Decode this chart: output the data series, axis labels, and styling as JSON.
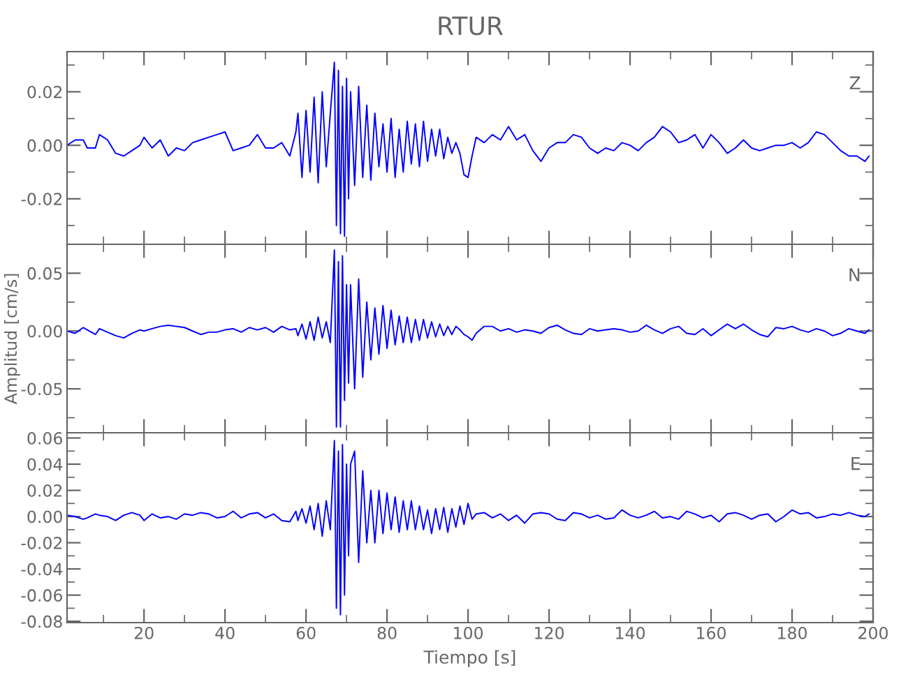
{
  "chart_data": [
    {
      "type": "line",
      "title": "RTUR",
      "annotations": [
        "Z"
      ],
      "tick_labels": "y",
      "grid": false,
      "legend": false,
      "xlim": [
        1,
        200
      ],
      "xticks": [
        {
          "value": 10,
          "label": null
        },
        20,
        {
          "value": 30,
          "label": null
        },
        40,
        {
          "value": 50,
          "label": null
        },
        60,
        {
          "value": 70,
          "label": null
        },
        80,
        {
          "value": 90,
          "label": null
        },
        100,
        {
          "value": 110,
          "label": null
        },
        120,
        {
          "value": 130,
          "label": null
        },
        140,
        {
          "value": 150,
          "label": null
        },
        160,
        {
          "value": 170,
          "label": null
        },
        180,
        {
          "value": 190,
          "label": null
        },
        200
      ],
      "ylim": [
        -0.037,
        0.035
      ],
      "yticks": [
        {
          "value": -0.03,
          "label": null
        },
        {
          "value": -0.02,
          "label": "-0.02"
        },
        {
          "value": -0.01,
          "label": null
        },
        {
          "value": 0,
          "label": "0.00"
        },
        {
          "value": 0.01,
          "label": null
        },
        {
          "value": 0.02,
          "label": "0.02"
        },
        {
          "value": 0.03,
          "label": null
        }
      ],
      "x": [
        1,
        3,
        5,
        6,
        8,
        9,
        11,
        13,
        15,
        17,
        19,
        20,
        22,
        24,
        26,
        28,
        30,
        32,
        34,
        36,
        38,
        40,
        42,
        44,
        46,
        48,
        50,
        52,
        54,
        56,
        57.5,
        58,
        59,
        60,
        61,
        62,
        63,
        64,
        65,
        66,
        67,
        67.5,
        68,
        68.5,
        69,
        69.5,
        70,
        70.5,
        71,
        72,
        73,
        74,
        75,
        76,
        77,
        78,
        79,
        80,
        81,
        82,
        83,
        84,
        85,
        86,
        87,
        88,
        89,
        90,
        91,
        92,
        93,
        94,
        95,
        96,
        97,
        98,
        99,
        100,
        101,
        102,
        104,
        106,
        108,
        110,
        112,
        114,
        116,
        118,
        120,
        122,
        124,
        126,
        128,
        130,
        132,
        134,
        136,
        138,
        140,
        142,
        144,
        146,
        148,
        150,
        152,
        154,
        156,
        158,
        160,
        162,
        164,
        166,
        168,
        170,
        172,
        174,
        176,
        178,
        180,
        182,
        184,
        186,
        188,
        190,
        192,
        194,
        196,
        198,
        199
      ],
      "series": [
        {
          "color": "#0000ff",
          "values": [
            0.0,
            0.002,
            0.002,
            -0.001,
            -0.001,
            0.004,
            0.002,
            -0.003,
            -0.004,
            -0.002,
            0.0,
            0.003,
            -0.001,
            0.002,
            -0.004,
            -0.001,
            -0.002,
            0.001,
            0.002,
            0.003,
            0.004,
            0.005,
            -0.002,
            -0.001,
            0.0,
            0.004,
            -0.001,
            -0.001,
            0.001,
            -0.004,
            0.005,
            0.012,
            -0.012,
            0.013,
            -0.01,
            0.018,
            -0.014,
            0.02,
            -0.008,
            0.012,
            0.031,
            -0.03,
            0.028,
            -0.033,
            0.022,
            -0.034,
            0.025,
            -0.02,
            0.02,
            -0.015,
            0.022,
            -0.012,
            0.015,
            -0.013,
            0.012,
            -0.008,
            0.008,
            -0.01,
            0.01,
            -0.012,
            0.006,
            -0.01,
            0.009,
            -0.007,
            0.008,
            -0.008,
            0.009,
            -0.006,
            0.006,
            -0.004,
            0.006,
            -0.005,
            0.003,
            -0.003,
            0.001,
            -0.003,
            -0.011,
            -0.012,
            -0.004,
            0.003,
            0.001,
            0.004,
            0.002,
            0.007,
            0.002,
            0.004,
            -0.002,
            -0.006,
            -0.001,
            0.001,
            0.001,
            0.004,
            0.003,
            -0.001,
            -0.003,
            -0.001,
            -0.002,
            0.001,
            0.0,
            -0.002,
            0.001,
            0.003,
            0.007,
            0.005,
            0.001,
            0.002,
            0.004,
            -0.001,
            0.004,
            0.001,
            -0.003,
            -0.001,
            0.002,
            -0.001,
            -0.002,
            -0.001,
            0.0,
            0.0,
            0.001,
            -0.001,
            0.001,
            0.005,
            0.004,
            0.001,
            -0.002,
            -0.004,
            -0.004,
            -0.006,
            -0.004
          ]
        }
      ]
    },
    {
      "type": "line",
      "ylabel": "Amplitud [cm/s]",
      "annotations": [
        "N"
      ],
      "tick_labels": "y",
      "grid": false,
      "legend": false,
      "xlim": [
        1,
        200
      ],
      "xticks": [
        {
          "value": 10,
          "label": null
        },
        20,
        {
          "value": 30,
          "label": null
        },
        40,
        {
          "value": 50,
          "label": null
        },
        60,
        {
          "value": 70,
          "label": null
        },
        80,
        {
          "value": 90,
          "label": null
        },
        100,
        {
          "value": 110,
          "label": null
        },
        120,
        {
          "value": 130,
          "label": null
        },
        140,
        {
          "value": 150,
          "label": null
        },
        160,
        {
          "value": 170,
          "label": null
        },
        180,
        {
          "value": 190,
          "label": null
        },
        200
      ],
      "ylim": [
        -0.088,
        0.075
      ],
      "yticks": [
        {
          "value": -0.075,
          "label": null
        },
        {
          "value": -0.05,
          "label": "-0.05"
        },
        {
          "value": -0.025,
          "label": null
        },
        {
          "value": 0,
          "label": "0.00"
        },
        {
          "value": 0.025,
          "label": null
        },
        {
          "value": 0.05,
          "label": "0.05"
        },
        {
          "value": 0.075,
          "label": null
        }
      ],
      "x": [
        1,
        3,
        5,
        6,
        8,
        9,
        11,
        13,
        15,
        17,
        19,
        20,
        22,
        24,
        26,
        28,
        30,
        32,
        34,
        36,
        38,
        40,
        42,
        44,
        46,
        48,
        50,
        52,
        54,
        56,
        57.5,
        58,
        59,
        60,
        61,
        62,
        63,
        64,
        65,
        66,
        67,
        67.5,
        68,
        68.5,
        69,
        69.5,
        70,
        70.5,
        71,
        72,
        73,
        74,
        75,
        76,
        77,
        78,
        79,
        80,
        81,
        82,
        83,
        84,
        85,
        86,
        87,
        88,
        89,
        90,
        91,
        92,
        93,
        94,
        95,
        96,
        97,
        98,
        99,
        100,
        101,
        102,
        104,
        106,
        108,
        110,
        112,
        114,
        116,
        118,
        120,
        122,
        124,
        126,
        128,
        130,
        132,
        134,
        136,
        138,
        140,
        142,
        144,
        146,
        148,
        150,
        152,
        154,
        156,
        158,
        160,
        162,
        164,
        166,
        168,
        170,
        172,
        174,
        176,
        178,
        180,
        182,
        184,
        186,
        188,
        190,
        192,
        194,
        196,
        198,
        199
      ],
      "series": [
        {
          "color": "#0000ff",
          "values": [
            0.0,
            -0.002,
            0.003,
            0.001,
            -0.003,
            0.002,
            -0.001,
            -0.004,
            -0.006,
            -0.002,
            0.001,
            0.0,
            0.002,
            0.004,
            0.005,
            0.004,
            0.003,
            0.0,
            -0.003,
            -0.001,
            -0.001,
            0.001,
            0.002,
            -0.001,
            0.003,
            0.001,
            0.003,
            -0.001,
            0.004,
            0.001,
            0.002,
            -0.004,
            0.006,
            -0.007,
            0.008,
            -0.008,
            0.012,
            -0.006,
            0.008,
            -0.01,
            0.07,
            -0.083,
            0.06,
            -0.083,
            0.065,
            -0.06,
            0.04,
            -0.045,
            0.04,
            -0.05,
            0.045,
            -0.04,
            0.025,
            -0.025,
            0.02,
            -0.02,
            0.022,
            -0.015,
            0.018,
            -0.012,
            0.013,
            -0.01,
            0.012,
            -0.01,
            0.01,
            -0.008,
            0.01,
            -0.006,
            0.008,
            -0.005,
            0.006,
            -0.004,
            0.004,
            -0.003,
            0.004,
            0.001,
            -0.003,
            -0.005,
            -0.008,
            -0.002,
            0.004,
            0.004,
            0.0,
            0.002,
            -0.001,
            0.001,
            0.0,
            -0.002,
            0.003,
            0.005,
            0.001,
            -0.002,
            -0.003,
            0.002,
            0.0,
            0.001,
            0.002,
            0.001,
            -0.001,
            0.0,
            0.005,
            0.001,
            -0.002,
            0.002,
            0.004,
            -0.002,
            -0.003,
            0.002,
            -0.004,
            0.001,
            0.006,
            0.002,
            0.006,
            0.001,
            -0.003,
            -0.005,
            0.003,
            0.002,
            0.004,
            0.001,
            -0.001,
            0.002,
            0.0,
            -0.004,
            -0.002,
            0.002,
            0.0,
            -0.002,
            0.001
          ]
        }
      ]
    },
    {
      "type": "line",
      "xlabel": "Tiempo [s]",
      "annotations": [
        "E"
      ],
      "grid": false,
      "legend": false,
      "xlim": [
        1,
        200
      ],
      "xticks": [
        {
          "value": 10,
          "label": null
        },
        {
          "value": 20,
          "label": "20"
        },
        {
          "value": 30,
          "label": null
        },
        {
          "value": 40,
          "label": "40"
        },
        {
          "value": 50,
          "label": null
        },
        {
          "value": 60,
          "label": "60"
        },
        {
          "value": 70,
          "label": null
        },
        {
          "value": 80,
          "label": "80"
        },
        {
          "value": 90,
          "label": null
        },
        {
          "value": 100,
          "label": "100"
        },
        {
          "value": 110,
          "label": null
        },
        {
          "value": 120,
          "label": "120"
        },
        {
          "value": 130,
          "label": null
        },
        {
          "value": 140,
          "label": "140"
        },
        {
          "value": 150,
          "label": null
        },
        {
          "value": 160,
          "label": "160"
        },
        {
          "value": 170,
          "label": null
        },
        {
          "value": 180,
          "label": "180"
        },
        {
          "value": 190,
          "label": null
        },
        {
          "value": 200,
          "label": "200"
        }
      ],
      "ylim": [
        -0.081,
        0.064
      ],
      "yticks": [
        {
          "value": -0.08,
          "label": "-0.08"
        },
        {
          "value": -0.07,
          "label": null
        },
        {
          "value": -0.06,
          "label": "-0.06"
        },
        {
          "value": -0.05,
          "label": null
        },
        {
          "value": -0.04,
          "label": "-0.04"
        },
        {
          "value": -0.03,
          "label": null
        },
        {
          "value": -0.02,
          "label": "-0.02"
        },
        {
          "value": -0.01,
          "label": null
        },
        {
          "value": 0,
          "label": "0.00"
        },
        {
          "value": 0.01,
          "label": null
        },
        {
          "value": 0.02,
          "label": "0.02"
        },
        {
          "value": 0.03,
          "label": null
        },
        {
          "value": 0.04,
          "label": "0.04"
        },
        {
          "value": 0.05,
          "label": null
        },
        {
          "value": 0.06,
          "label": "0.06"
        }
      ],
      "x": [
        1,
        3,
        5,
        6,
        8,
        9,
        11,
        13,
        15,
        17,
        19,
        20,
        22,
        24,
        26,
        28,
        30,
        32,
        34,
        36,
        38,
        40,
        42,
        44,
        46,
        48,
        50,
        52,
        54,
        56,
        57.5,
        58,
        59,
        60,
        61,
        62,
        63,
        64,
        65,
        66,
        67,
        67.5,
        68,
        68.5,
        69,
        69.5,
        70,
        70.5,
        71,
        72,
        73,
        74,
        75,
        76,
        77,
        78,
        79,
        80,
        81,
        82,
        83,
        84,
        85,
        86,
        87,
        88,
        89,
        90,
        91,
        92,
        93,
        94,
        95,
        96,
        97,
        98,
        99,
        100,
        101,
        102,
        104,
        106,
        108,
        110,
        112,
        114,
        116,
        118,
        120,
        122,
        124,
        126,
        128,
        130,
        132,
        134,
        136,
        138,
        140,
        142,
        144,
        146,
        148,
        150,
        152,
        154,
        156,
        158,
        160,
        162,
        164,
        166,
        168,
        170,
        172,
        174,
        176,
        178,
        180,
        182,
        184,
        186,
        188,
        190,
        192,
        194,
        196,
        198,
        199
      ],
      "series": [
        {
          "color": "#0000ff",
          "values": [
            0.001,
            0.0,
            -0.002,
            -0.001,
            0.002,
            0.001,
            0.0,
            -0.003,
            0.001,
            0.003,
            0.001,
            -0.003,
            0.002,
            -0.001,
            0.0,
            -0.002,
            0.002,
            0.001,
            0.003,
            0.002,
            -0.001,
            0.0,
            0.004,
            -0.001,
            0.002,
            0.003,
            -0.001,
            0.002,
            -0.003,
            -0.004,
            0.004,
            -0.003,
            0.006,
            -0.005,
            0.008,
            -0.01,
            0.01,
            -0.015,
            0.012,
            -0.01,
            0.058,
            -0.07,
            0.05,
            -0.075,
            0.055,
            -0.06,
            0.04,
            -0.03,
            0.04,
            0.05,
            -0.035,
            0.035,
            -0.02,
            0.02,
            -0.02,
            0.02,
            -0.013,
            0.018,
            -0.01,
            0.015,
            -0.012,
            0.012,
            -0.01,
            0.012,
            -0.01,
            0.008,
            -0.01,
            0.005,
            -0.013,
            0.006,
            -0.01,
            0.007,
            -0.012,
            0.006,
            -0.008,
            0.008,
            -0.006,
            0.01,
            -0.002,
            0.002,
            0.003,
            -0.001,
            0.002,
            -0.003,
            0.001,
            -0.005,
            0.002,
            0.003,
            0.002,
            -0.002,
            -0.003,
            0.003,
            0.002,
            -0.001,
            0.001,
            -0.002,
            -0.001,
            0.005,
            0.001,
            -0.001,
            0.001,
            0.004,
            -0.001,
            0.0,
            -0.002,
            0.004,
            0.002,
            -0.001,
            0.001,
            -0.004,
            0.002,
            0.003,
            0.001,
            -0.002,
            0.001,
            0.002,
            -0.004,
            0.0,
            0.005,
            0.002,
            0.003,
            -0.001,
            0.0,
            0.002,
            0.001,
            0.003,
            0.001,
            0.0,
            0.002
          ]
        }
      ]
    }
  ]
}
